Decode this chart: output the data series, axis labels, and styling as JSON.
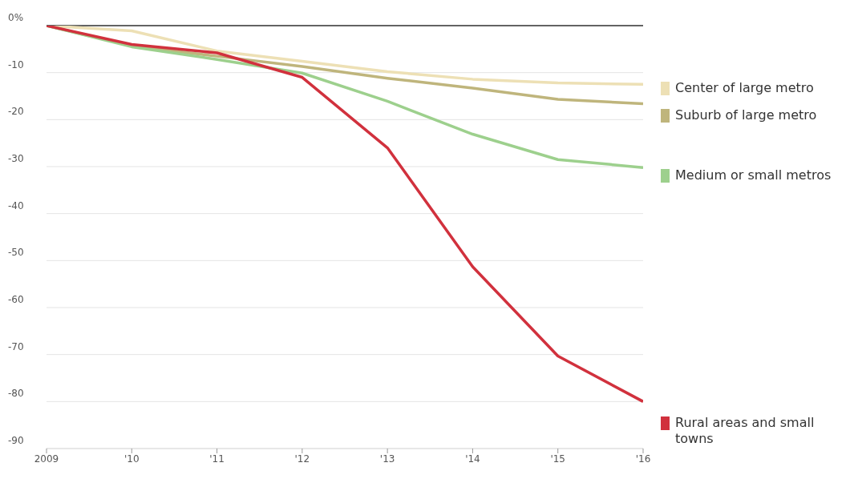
{
  "chart_data": {
    "type": "line",
    "x": [
      2009,
      2010,
      2011,
      2012,
      2013,
      2014,
      2015,
      2016
    ],
    "series": [
      {
        "name": "Center of large metro",
        "color": "#ede0b5",
        "values": [
          0,
          -1.1,
          -5.4,
          -7.6,
          -9.8,
          -11.4,
          -12.2,
          -12.5
        ]
      },
      {
        "name": "Suburb of large metro",
        "color": "#bfb57c",
        "values": [
          0,
          -4.3,
          -6.5,
          -8.7,
          -11.2,
          -13.3,
          -15.7,
          -16.6
        ]
      },
      {
        "name": "Medium or small metros",
        "color": "#9dd08d",
        "values": [
          0,
          -4.5,
          -7.2,
          -10.1,
          -16.1,
          -23.1,
          -28.5,
          -30.2
        ]
      },
      {
        "name": "Rural areas and small towns",
        "color": "#d1313d",
        "values": [
          0,
          -4,
          -5.8,
          -11,
          -26,
          -51.3,
          -70.3,
          -80
        ]
      }
    ],
    "xlim": [
      2009,
      2016
    ],
    "xticks": [
      {
        "value": 2009,
        "label": "2009"
      },
      {
        "value": 2010,
        "label": "'10"
      },
      {
        "value": 2011,
        "label": "'11"
      },
      {
        "value": 2012,
        "label": "'12"
      },
      {
        "value": 2013,
        "label": "'13"
      },
      {
        "value": 2014,
        "label": "'14"
      },
      {
        "value": 2015,
        "label": "'15"
      },
      {
        "value": 2016,
        "label": "'16"
      }
    ],
    "ylim": [
      -90,
      0
    ],
    "yticks": [
      {
        "value": 0,
        "label": "0%"
      },
      -10,
      -20,
      -30,
      -40,
      -50,
      -60,
      -70,
      -80,
      -90
    ],
    "ref_lines": [
      {
        "axis": "y",
        "value": 0,
        "color": "#333333"
      }
    ],
    "grid": "y",
    "legend": "right",
    "marker": "none",
    "line_style": "solid"
  }
}
